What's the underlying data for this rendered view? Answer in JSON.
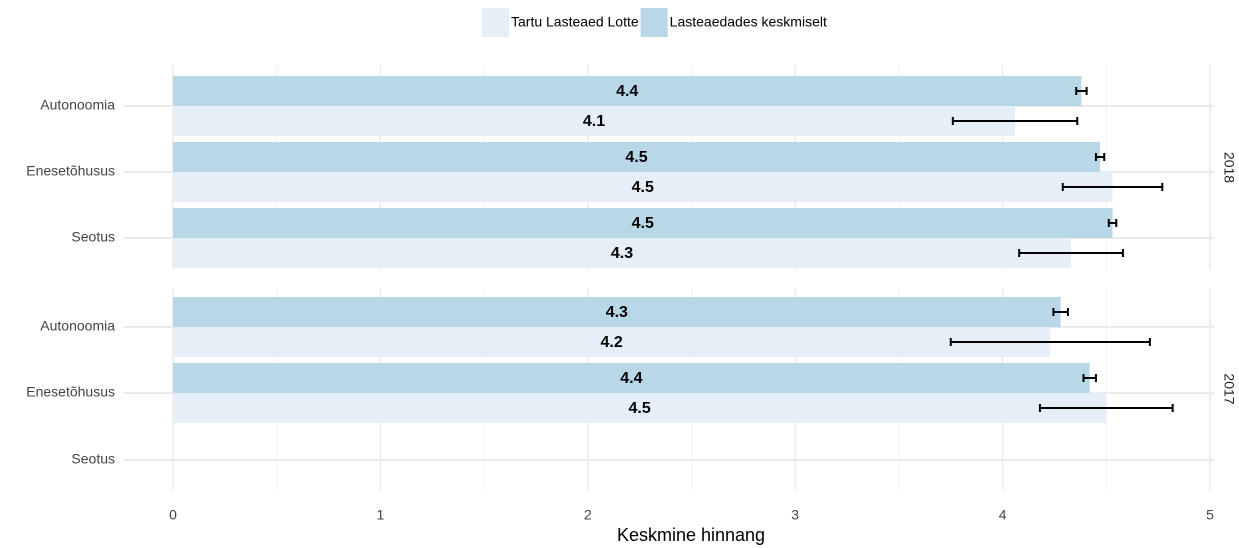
{
  "chart_data": {
    "type": "bar",
    "orientation": "horizontal",
    "x_label": "Keskmine hinnang",
    "xlim": [
      0,
      5
    ],
    "xticks": [
      0,
      1,
      2,
      3,
      4,
      5
    ],
    "grid": true,
    "legend": "top",
    "facets": [
      "2018",
      "2017"
    ],
    "categories": [
      "Autonoomia",
      "Enesetõhusus",
      "Seotus"
    ],
    "series": [
      {
        "name": "Tartu Lasteaed Lotte",
        "color": "#e6eef8",
        "values": [
          [
            4.06,
            4.53,
            4.33
          ],
          [
            4.23,
            4.5,
            null
          ]
        ],
        "value_labels": [
          [
            "4.1",
            "4.5",
            "4.3"
          ],
          [
            "4.2",
            "4.5",
            null
          ]
        ],
        "errors": [
          [
            0.3,
            0.24,
            0.25
          ],
          [
            0.48,
            0.32,
            null
          ]
        ]
      },
      {
        "name": "Lasteaedades keskmiselt",
        "color": "#b8d8e8",
        "values": [
          [
            4.38,
            4.47,
            4.53
          ],
          [
            4.28,
            4.42,
            null
          ]
        ],
        "value_labels": [
          [
            "4.4",
            "4.5",
            "4.5"
          ],
          [
            "4.3",
            "4.4",
            null
          ]
        ],
        "errors": [
          [
            0.025,
            0.02,
            0.018
          ],
          [
            0.035,
            0.03,
            null
          ]
        ]
      }
    ]
  }
}
